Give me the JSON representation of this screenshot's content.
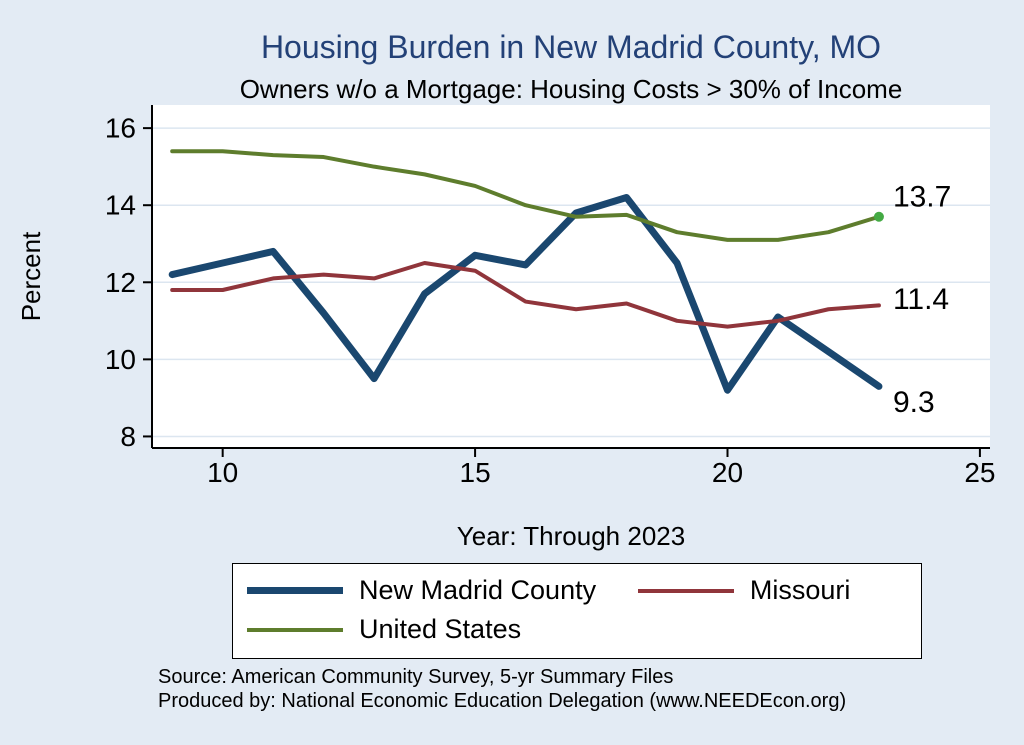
{
  "colors": {
    "background": "#e3ebf4",
    "title_text": "#234177",
    "plot_bg": "#ffffff",
    "grid": "#dce6f0",
    "axis": "#000000",
    "text": "#000000",
    "new_madrid_county": "#1a476f",
    "missouri": "#90353b",
    "united_states": "#5e7d2d",
    "end_marker": "#44aa44"
  },
  "chart_data": {
    "type": "line",
    "title": "Housing Burden in New Madrid County, MO",
    "subtitle": "Owners w/o a Mortgage: Housing Costs > 30% of Income",
    "xlabel": "Year: Through 2023",
    "ylabel": "Percent",
    "x": [
      9,
      10,
      11,
      12,
      13,
      14,
      15,
      16,
      17,
      18,
      19,
      20,
      21,
      22,
      23
    ],
    "series": [
      {
        "name": "New Madrid County",
        "color_key": "new_madrid_county",
        "stroke_width": 7,
        "values": [
          12.2,
          12.5,
          12.8,
          11.2,
          9.5,
          11.7,
          12.7,
          12.45,
          13.8,
          14.2,
          12.5,
          9.2,
          11.1,
          10.2,
          9.3
        ],
        "end_label": "9.3",
        "end_label_dy": 16,
        "end_marker": false
      },
      {
        "name": "Missouri",
        "color_key": "missouri",
        "stroke_width": 4,
        "values": [
          11.8,
          11.8,
          12.1,
          12.2,
          12.1,
          12.5,
          12.3,
          11.5,
          11.3,
          11.45,
          11.0,
          10.85,
          11.0,
          11.3,
          11.4
        ],
        "end_label": "11.4",
        "end_label_dy": -6,
        "end_marker": false
      },
      {
        "name": "United States",
        "color_key": "united_states",
        "stroke_width": 4,
        "values": [
          15.4,
          15.4,
          15.3,
          15.25,
          15.0,
          14.8,
          14.5,
          14.0,
          13.7,
          13.75,
          13.3,
          13.1,
          13.1,
          13.3,
          13.7
        ],
        "end_label": "13.7",
        "end_label_dy": -20,
        "end_marker": true
      }
    ],
    "xticks": [
      10,
      15,
      20,
      25
    ],
    "yticks": [
      8,
      10,
      12,
      14,
      16
    ],
    "xlim": [
      8.6,
      25.2
    ],
    "ylim": [
      7.7,
      16.6
    ],
    "grid": true,
    "legend_position": "bottom"
  },
  "notes": {
    "line1": "Source: American Community Survey, 5-yr Summary Files",
    "line2": "Produced by: National Economic Education Delegation (www.NEEDEcon.org)"
  }
}
